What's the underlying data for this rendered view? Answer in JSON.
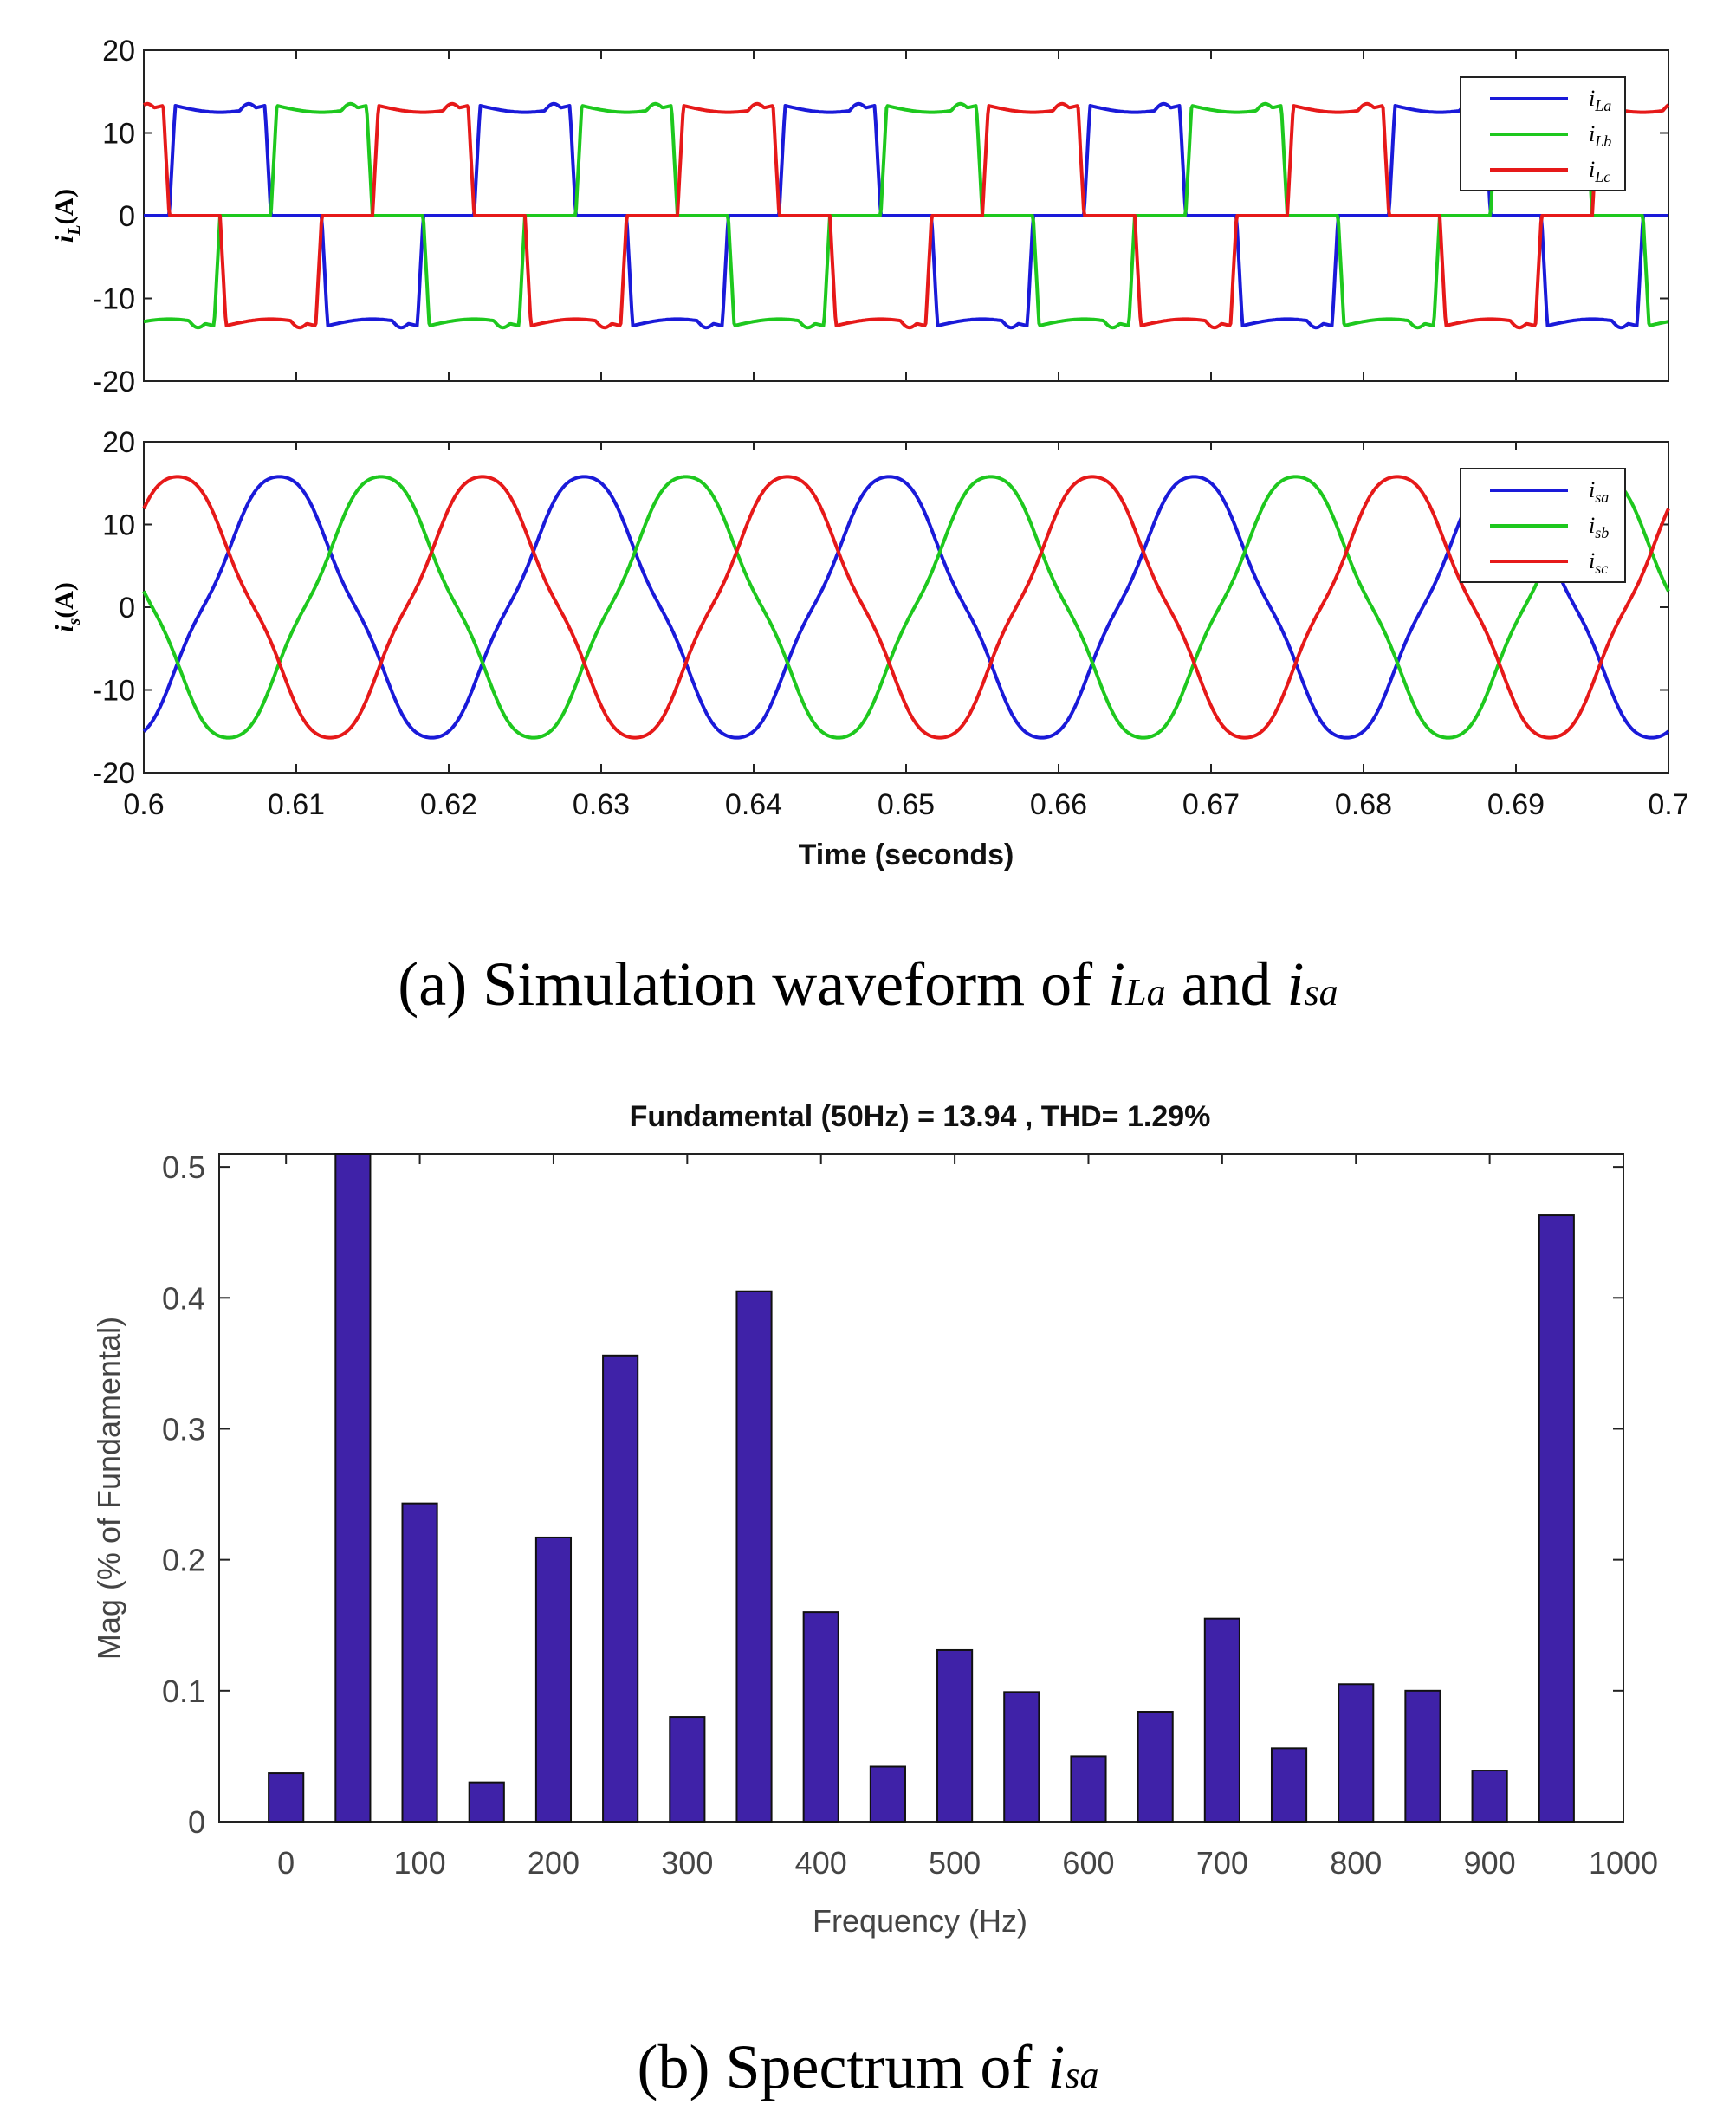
{
  "chart_data": [
    {
      "type": "line",
      "title": "",
      "ylabel": "iL(A)",
      "ylabel_main": "i",
      "ylabel_sub": "L",
      "ylabel_tail": "(A)",
      "xlim": [
        0.6,
        0.7
      ],
      "ylim": [
        -20,
        20
      ],
      "yticks": [
        "20",
        "10",
        "0",
        "-10",
        "-20"
      ],
      "ytick_values": [
        20,
        10,
        0,
        -10,
        -20
      ],
      "frequency_hz": 50,
      "amplitude": 13.3,
      "series": [
        {
          "name": "iLa",
          "label_main": "i",
          "label_sub": "La",
          "color": "#1a1ad9",
          "phase_deg": 0
        },
        {
          "name": "iLb",
          "label_main": "i",
          "label_sub": "Lb",
          "color": "#1ec81e",
          "phase_deg": -120
        },
        {
          "name": "iLc",
          "label_main": "i",
          "label_sub": "Lc",
          "color": "#e61919",
          "phase_deg": 120
        }
      ]
    },
    {
      "type": "line",
      "title": "",
      "ylabel": "is(A)",
      "ylabel_main": "i",
      "ylabel_sub": "s",
      "ylabel_tail": "(A)",
      "xlabel": "Time (seconds)",
      "xlim": [
        0.6,
        0.7
      ],
      "ylim": [
        -20,
        20
      ],
      "xticks": [
        "0.6",
        "0.61",
        "0.62",
        "0.63",
        "0.64",
        "0.65",
        "0.66",
        "0.67",
        "0.68",
        "0.69",
        "0.7"
      ],
      "xtick_values": [
        0.6,
        0.61,
        0.62,
        0.63,
        0.64,
        0.65,
        0.66,
        0.67,
        0.68,
        0.69,
        0.7
      ],
      "yticks": [
        "20",
        "10",
        "0",
        "-10",
        "-20"
      ],
      "ytick_values": [
        20,
        10,
        0,
        -10,
        -20
      ],
      "frequency_hz": 50,
      "amplitude": 15.0,
      "series": [
        {
          "name": "isa",
          "label_main": "i",
          "label_sub": "sa",
          "color": "#1a1ad9",
          "phase_deg": 0
        },
        {
          "name": "isb",
          "label_main": "i",
          "label_sub": "sb",
          "color": "#1ec81e",
          "phase_deg": -120
        },
        {
          "name": "isc",
          "label_main": "i",
          "label_sub": "sc",
          "color": "#e61919",
          "phase_deg": 120
        }
      ]
    },
    {
      "type": "bar",
      "title": "Fundamental (50Hz) = 13.94 , THD= 1.29%",
      "xlabel": "Frequency (Hz)",
      "ylabel": "Mag (% of Fundamental)",
      "xlim": [
        -50,
        1000
      ],
      "ylim": [
        0,
        0.51
      ],
      "xticks": [
        "0",
        "100",
        "200",
        "300",
        "400",
        "500",
        "600",
        "700",
        "800",
        "900",
        "1000"
      ],
      "xtick_values": [
        0,
        100,
        200,
        300,
        400,
        500,
        600,
        700,
        800,
        900,
        1000
      ],
      "yticks": [
        "0",
        "0.1",
        "0.2",
        "0.3",
        "0.4",
        "0.5"
      ],
      "ytick_values": [
        0,
        0.1,
        0.2,
        0.3,
        0.4,
        0.5
      ],
      "bar_color": "#3f22a8",
      "x": [
        0,
        50,
        100,
        150,
        200,
        250,
        300,
        350,
        400,
        450,
        500,
        550,
        600,
        650,
        700,
        750,
        800,
        850,
        900,
        950
      ],
      "values": [
        0.037,
        0.51,
        0.243,
        0.03,
        0.217,
        0.356,
        0.08,
        0.405,
        0.16,
        0.042,
        0.131,
        0.099,
        0.05,
        0.084,
        0.155,
        0.056,
        0.105,
        0.1,
        0.039,
        0.463
      ]
    }
  ],
  "captions": {
    "a_prefix": "(a) Simulation waveform of ",
    "a_var1_main": "i",
    "a_var1_sub": "La",
    "a_mid": " and ",
    "a_var2_main": "i",
    "a_var2_sub": "sa",
    "b_prefix": "(b) Spectrum of ",
    "b_var_main": "i",
    "b_var_sub": "sa"
  }
}
